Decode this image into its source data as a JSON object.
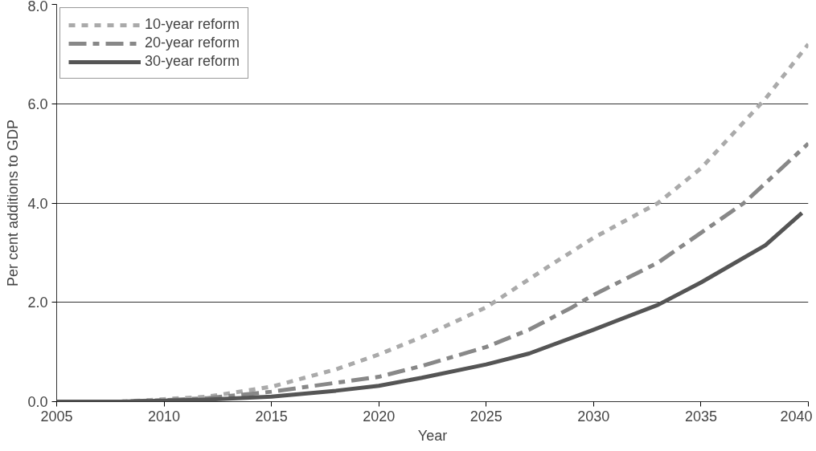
{
  "chart_data": {
    "type": "line",
    "xlabel": "Year",
    "ylabel": "Per cent additions to GDP",
    "xlim": [
      2005,
      2040
    ],
    "xticks": [
      2005,
      2010,
      2015,
      2020,
      2025,
      2030,
      2035,
      2040
    ],
    "ylim": [
      0,
      8
    ],
    "yticks": [
      {
        "value": 0,
        "label": "0.0"
      },
      {
        "value": 2,
        "label": "2.0"
      },
      {
        "value": 4,
        "label": "4.0"
      },
      {
        "value": 6,
        "label": "6.0"
      },
      {
        "value": 8,
        "label": "8.0"
      }
    ],
    "grid": "y",
    "legend": "top left",
    "series": [
      {
        "name": "10-year reform",
        "color": "#aaaaaa",
        "line_style": "dashed",
        "x": [
          2005,
          2008,
          2010,
          2012,
          2015,
          2018,
          2020,
          2022,
          2025,
          2028,
          2030,
          2033,
          2035,
          2038,
          2040
        ],
        "values": [
          0,
          0,
          0.05,
          0.1,
          0.3,
          0.65,
          0.95,
          1.3,
          1.9,
          2.75,
          3.3,
          4.0,
          4.7,
          6.1,
          7.2
        ]
      },
      {
        "name": "20-year reform",
        "color": "#888888",
        "line_style": "dashdot",
        "x": [
          2005,
          2008,
          2010,
          2012,
          2015,
          2018,
          2020,
          2022,
          2025,
          2027,
          2029,
          2030,
          2033,
          2035,
          2037,
          2040
        ],
        "values": [
          0,
          0,
          0.03,
          0.07,
          0.2,
          0.38,
          0.5,
          0.72,
          1.1,
          1.45,
          1.9,
          2.15,
          2.8,
          3.4,
          4.0,
          5.2
        ]
      },
      {
        "name": "30-year reform",
        "color": "#555555",
        "line_style": "solid",
        "x": [
          2005,
          2008,
          2010,
          2012,
          2015,
          2018,
          2020,
          2022,
          2025,
          2027,
          2030,
          2033,
          2035,
          2038,
          2039.7
        ],
        "values": [
          0,
          0,
          0.02,
          0.04,
          0.1,
          0.22,
          0.32,
          0.48,
          0.75,
          0.97,
          1.45,
          1.95,
          2.4,
          3.15,
          3.8
        ]
      }
    ]
  }
}
